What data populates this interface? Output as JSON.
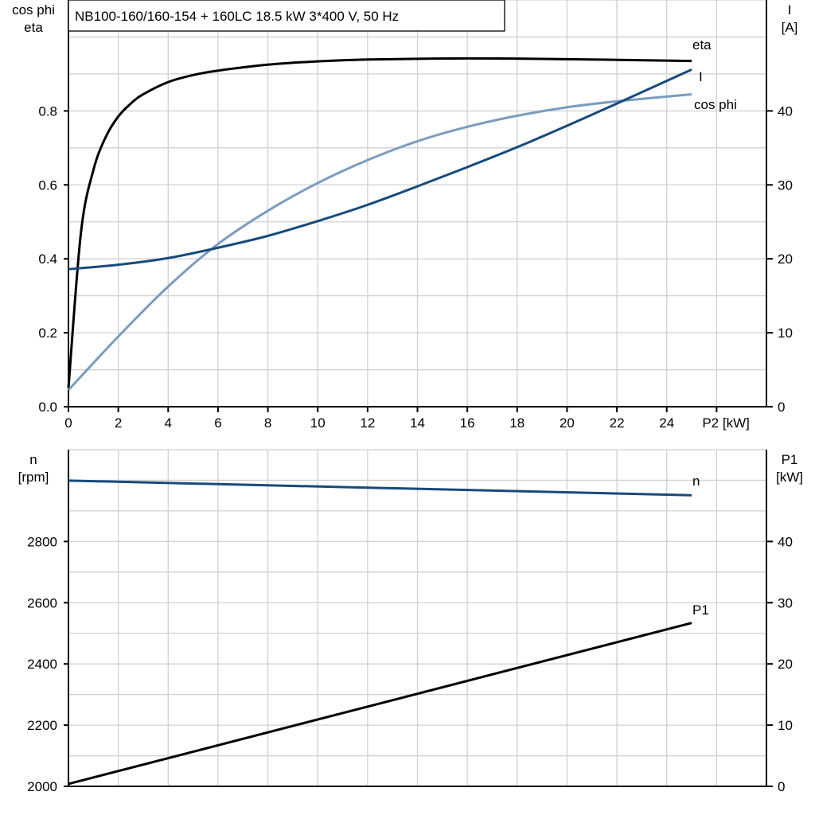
{
  "chart_data": [
    {
      "type": "line",
      "title": "NB100-160/160-154 + 160LC   18.5 kW   3*400 V, 50 Hz",
      "xlabel": "P2 [kW]",
      "ylabel_left": [
        "cos phi",
        "eta"
      ],
      "ylabel_right": [
        "I",
        "[A]"
      ],
      "xlim": [
        0,
        28
      ],
      "ylim_left": [
        0,
        1.1
      ],
      "ylim_right": [
        0,
        55
      ],
      "x_ticks": [
        0,
        2,
        4,
        6,
        8,
        10,
        12,
        14,
        16,
        18,
        20,
        22,
        24
      ],
      "y_ticks_left": [
        "0.0",
        "0.2",
        "0.4",
        "0.6",
        "0.8"
      ],
      "y_ticks_right": [
        "0",
        "10",
        "20",
        "30",
        "40"
      ],
      "grid": true,
      "series": [
        {
          "name": "eta",
          "axis": "left",
          "color": "#000000",
          "x": [
            0,
            0.5,
            1,
            1.5,
            2,
            2.5,
            3,
            4,
            5,
            6,
            8,
            10,
            12,
            16,
            20,
            25
          ],
          "y": [
            0.05,
            0.47,
            0.64,
            0.73,
            0.785,
            0.82,
            0.845,
            0.878,
            0.897,
            0.909,
            0.925,
            0.934,
            0.939,
            0.942,
            0.94,
            0.935
          ]
        },
        {
          "name": "cos phi",
          "axis": "left",
          "color": "#7a9cbf",
          "x": [
            0,
            2,
            4,
            6,
            8,
            10,
            12,
            14,
            16,
            18,
            20,
            22,
            25
          ],
          "y": [
            0.045,
            0.19,
            0.325,
            0.44,
            0.53,
            0.605,
            0.667,
            0.718,
            0.757,
            0.787,
            0.81,
            0.826,
            0.845
          ]
        },
        {
          "name": "I",
          "axis": "right",
          "color": "#174a7c",
          "x": [
            0,
            2,
            4,
            6,
            8,
            10,
            12,
            14,
            16,
            18,
            20,
            22,
            25
          ],
          "y": [
            18.6,
            19.2,
            20.1,
            21.5,
            23.1,
            25.1,
            27.3,
            29.8,
            32.4,
            35.1,
            38.0,
            41.0,
            45.6
          ]
        }
      ]
    },
    {
      "type": "line",
      "ylabel_left": [
        "n",
        "[rpm]"
      ],
      "ylabel_right": [
        "P1",
        "[kW]"
      ],
      "xlim": [
        0,
        28
      ],
      "ylim_left": [
        2000,
        3100
      ],
      "ylim_right": [
        0,
        55
      ],
      "y_ticks_left": [
        "2000",
        "2200",
        "2400",
        "2600",
        "2800"
      ],
      "y_ticks_right": [
        "0",
        "10",
        "20",
        "30",
        "40"
      ],
      "grid": true,
      "series": [
        {
          "name": "n",
          "axis": "left",
          "color": "#174a7c",
          "x": [
            0,
            25
          ],
          "y": [
            2999,
            2951
          ]
        },
        {
          "name": "P1",
          "axis": "right",
          "color": "#000000",
          "x": [
            0,
            25
          ],
          "y": [
            0.4,
            26.7
          ]
        }
      ]
    }
  ]
}
